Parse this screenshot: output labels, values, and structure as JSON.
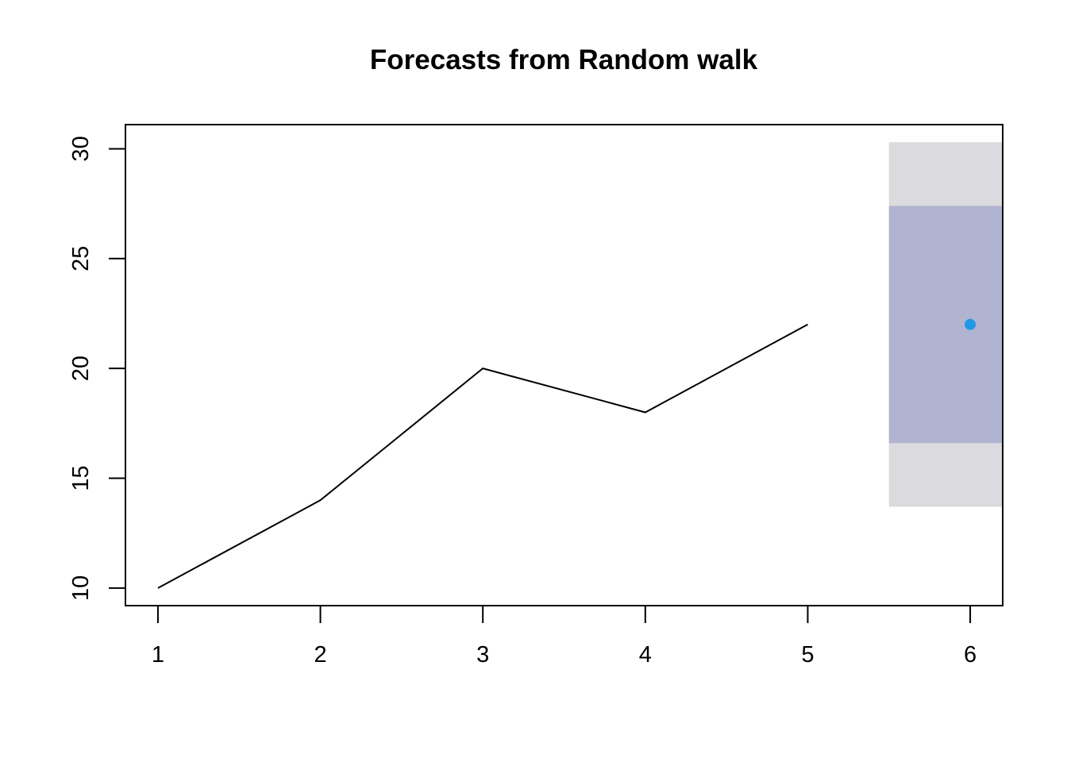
{
  "chart_data": {
    "type": "line",
    "title": "Forecasts from Random walk",
    "xlabel": "",
    "ylabel": "",
    "x": [
      1,
      2,
      3,
      4,
      5
    ],
    "series": [
      {
        "values": [
          10,
          14,
          20,
          18,
          22
        ]
      }
    ],
    "forecast": {
      "x": 6,
      "point": 22,
      "interval_80": [
        16.6,
        27.4
      ],
      "interval_95": [
        13.7,
        30.3
      ],
      "x_range": [
        5.5,
        6.2
      ]
    },
    "xlim": [
      0.8,
      6.2
    ],
    "ylim": [
      9.2,
      31.1
    ],
    "x_ticks": [
      "1",
      "2",
      "3",
      "4",
      "5",
      "6"
    ],
    "y_ticks": [
      "10",
      "15",
      "20",
      "25",
      "30"
    ],
    "grid": false,
    "colors": {
      "line": "#000000",
      "forecast_point": "#2297e6",
      "band_80": "#b0b4d0",
      "band_95": "#dbdbdf"
    }
  }
}
